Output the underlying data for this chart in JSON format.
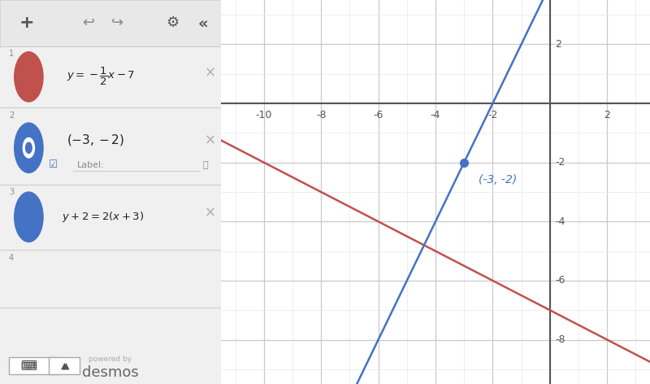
{
  "xlim": [
    -11.5,
    3.5
  ],
  "ylim": [
    -9.5,
    3.5
  ],
  "xticks": [
    -10,
    -8,
    -6,
    -4,
    -2,
    0,
    2
  ],
  "yticks": [
    -8,
    -6,
    -4,
    -2,
    0,
    2
  ],
  "line1_slope": -0.5,
  "line1_intercept": -7,
  "line1_color": "#c0514d",
  "line2_slope": 2.0,
  "line2_intercept": 4,
  "line2_color": "#4472c4",
  "point_x": -3,
  "point_y": -2,
  "point_color": "#4472c4",
  "point_label": "(-3, -2)",
  "bg_color": "#ffffff",
  "grid_color": "#c8c8d0",
  "axis_color": "#555555",
  "minor_grid_color": "#e8e8ee",
  "panel_bg": "#ffffff",
  "toolbar_bg": "#e8e8e8",
  "divider_color": "#cccccc",
  "icon_red": "#c0514d",
  "icon_blue": "#4472c4",
  "text_dark": "#222222",
  "text_gray": "#888888",
  "text_lightgray": "#aaaaaa"
}
